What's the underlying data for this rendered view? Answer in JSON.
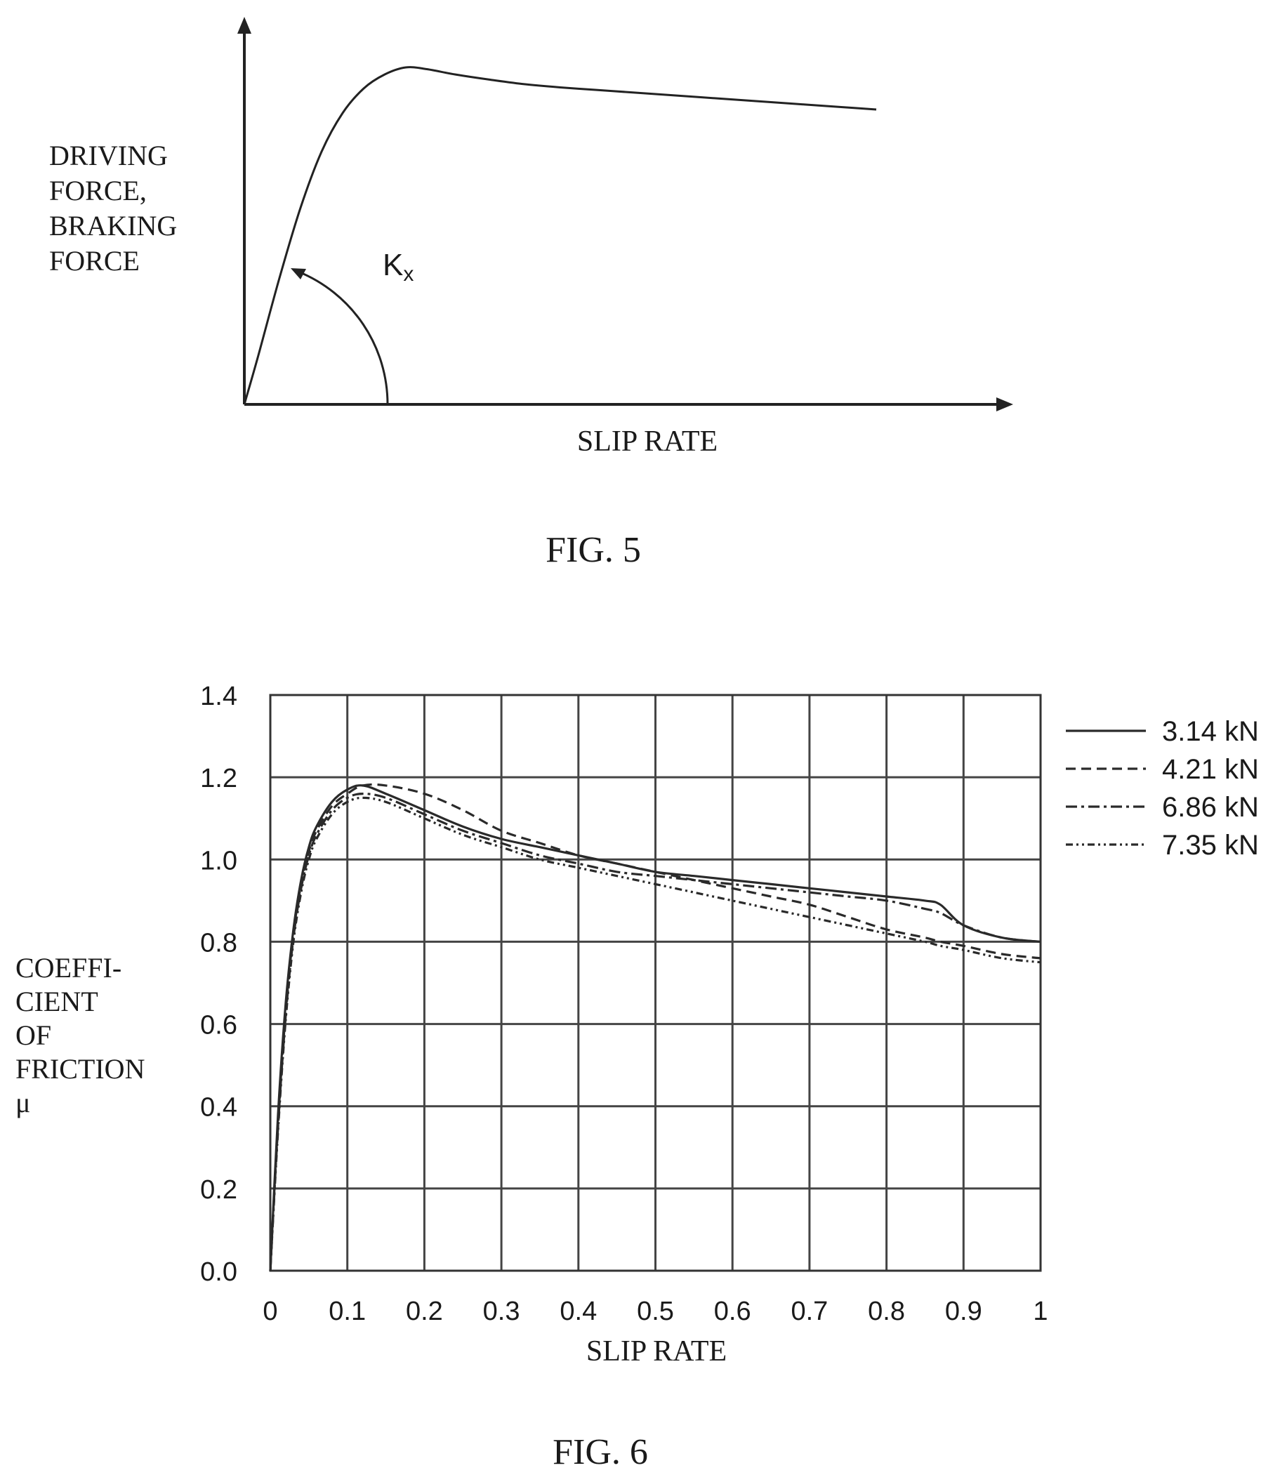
{
  "chart_data": [
    {
      "figure_label": "FIG. 5",
      "type": "line",
      "title": "",
      "xlabel": "SLIP RATE",
      "ylabel_lines": [
        "DRIVING",
        "FORCE,",
        "BRAKING",
        "FORCE"
      ],
      "annotation": {
        "symbol": "K",
        "subscript": "x"
      },
      "x": [
        0,
        0.02,
        0.05,
        0.08,
        0.11,
        0.14,
        0.17,
        0.2,
        0.23,
        0.26,
        0.3,
        0.35,
        0.4,
        0.45,
        0.5,
        0.55,
        0.6,
        0.65,
        0.7,
        0.75,
        0.8,
        0.85,
        0.9
      ],
      "series": [
        {
          "values": [
            0,
            0.14,
            0.36,
            0.56,
            0.72,
            0.83,
            0.9,
            0.94,
            0.96,
            0.955,
            0.94,
            0.925,
            0.912,
            0.903,
            0.896,
            0.889,
            0.882,
            0.875,
            0.868,
            0.861,
            0.854,
            0.847,
            0.84
          ]
        }
      ],
      "grid": false
    },
    {
      "figure_label": "FIG. 6",
      "type": "line",
      "title": "",
      "xlabel": "SLIP RATE",
      "ylabel_lines": [
        "COEFFI-",
        "CIENT",
        "OF",
        "FRICTION",
        "μ"
      ],
      "xlim": [
        0,
        1
      ],
      "ylim": [
        0,
        1.4
      ],
      "xticks": [
        "0",
        "0.1",
        "0.2",
        "0.3",
        "0.4",
        "0.5",
        "0.6",
        "0.7",
        "0.8",
        "0.9",
        "1"
      ],
      "yticks": [
        "0.0",
        "0.2",
        "0.4",
        "0.6",
        "0.8",
        "1.0",
        "1.2",
        "1.4"
      ],
      "grid": true,
      "legend_position": "right",
      "x": [
        0,
        0.01,
        0.02,
        0.03,
        0.04,
        0.05,
        0.06,
        0.08,
        0.1,
        0.12,
        0.15,
        0.2,
        0.25,
        0.3,
        0.35,
        0.4,
        0.45,
        0.5,
        0.55,
        0.6,
        0.65,
        0.7,
        0.75,
        0.8,
        0.85,
        0.87,
        0.9,
        0.95,
        1.0
      ],
      "series": [
        {
          "name": "3.14 kN",
          "dash": "",
          "values": [
            0,
            0.38,
            0.65,
            0.83,
            0.95,
            1.03,
            1.08,
            1.14,
            1.17,
            1.18,
            1.16,
            1.12,
            1.08,
            1.05,
            1.03,
            1.01,
            0.99,
            0.97,
            0.96,
            0.95,
            0.94,
            0.93,
            0.92,
            0.91,
            0.9,
            0.89,
            0.84,
            0.81,
            0.8
          ]
        },
        {
          "name": "4.21 kN",
          "dash": "14 8",
          "values": [
            0,
            0.36,
            0.63,
            0.82,
            0.94,
            1.02,
            1.07,
            1.13,
            1.16,
            1.18,
            1.18,
            1.16,
            1.12,
            1.07,
            1.04,
            1.01,
            0.99,
            0.97,
            0.95,
            0.93,
            0.91,
            0.89,
            0.86,
            0.83,
            0.81,
            0.8,
            0.79,
            0.77,
            0.76
          ]
        },
        {
          "name": "6.86 kN",
          "dash": "16 6 4 6",
          "values": [
            0,
            0.35,
            0.62,
            0.81,
            0.93,
            1.01,
            1.06,
            1.12,
            1.15,
            1.16,
            1.15,
            1.11,
            1.07,
            1.04,
            1.01,
            0.99,
            0.97,
            0.96,
            0.95,
            0.94,
            0.93,
            0.92,
            0.91,
            0.9,
            0.88,
            0.87,
            0.84,
            0.81,
            0.8
          ]
        },
        {
          "name": "7.35 kN",
          "dash": "10 5 3 5 3 5",
          "values": [
            0,
            0.34,
            0.61,
            0.8,
            0.92,
            1.0,
            1.05,
            1.11,
            1.14,
            1.15,
            1.14,
            1.1,
            1.06,
            1.03,
            1.0,
            0.98,
            0.96,
            0.94,
            0.92,
            0.9,
            0.88,
            0.86,
            0.84,
            0.82,
            0.8,
            0.79,
            0.78,
            0.76,
            0.75
          ]
        }
      ]
    }
  ]
}
